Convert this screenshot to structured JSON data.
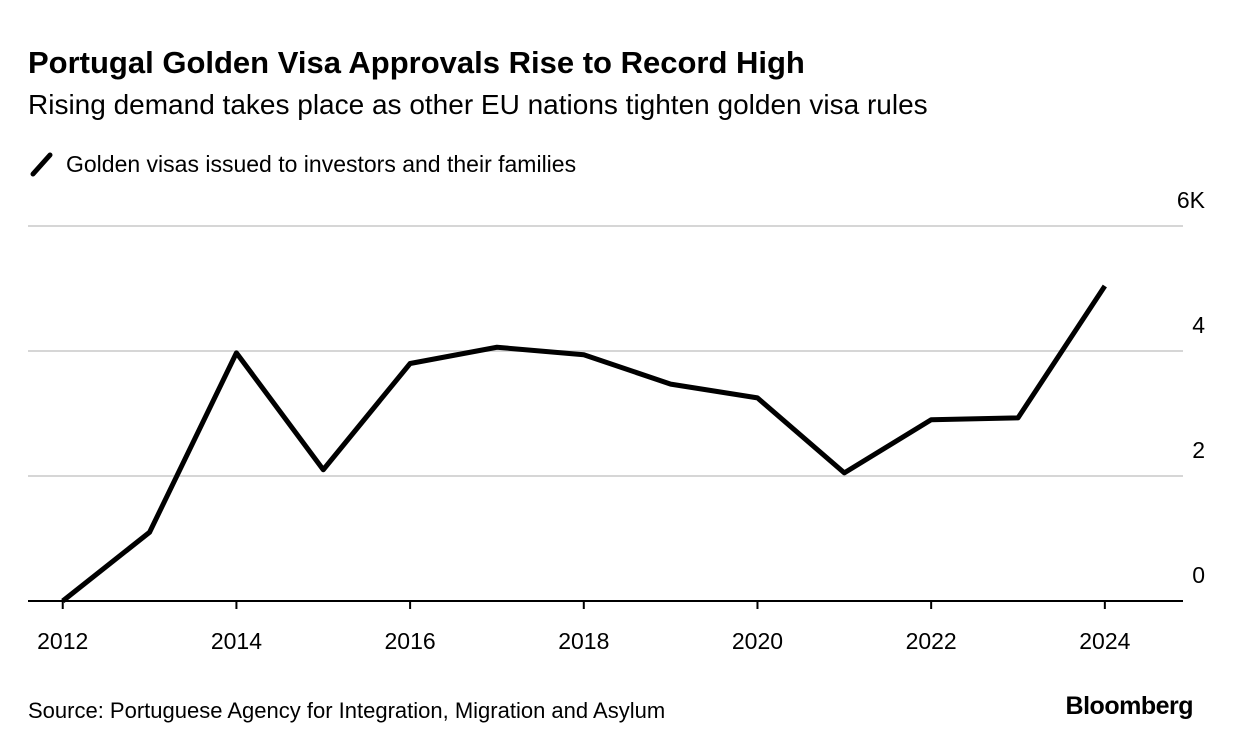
{
  "chart_data": {
    "type": "line",
    "title": "Portugal Golden Visa Approvals Rise to Record High",
    "subtitle": "Rising demand takes place as other EU nations tighten golden visa rules",
    "source": "Source: Portuguese Agency for Integration, Migration and Asylum",
    "brand": "Bloomberg",
    "x": [
      2012,
      2013,
      2014,
      2015,
      2016,
      2017,
      2018,
      2019,
      2020,
      2021,
      2022,
      2023,
      2024
    ],
    "series": [
      {
        "name": "Golden visas issued to investors and their families",
        "color": "#000000",
        "values": [
          0,
          1.1,
          3.97,
          2.1,
          3.8,
          4.06,
          3.94,
          3.47,
          3.25,
          2.05,
          2.9,
          2.93,
          5.04
        ]
      }
    ],
    "xlim": [
      2011.6,
      2024.9
    ],
    "xticks": [
      2012,
      2014,
      2016,
      2018,
      2020,
      2022,
      2024
    ],
    "ylim": [
      0,
      6
    ],
    "yticks": [
      0,
      2,
      4,
      {
        "value": 6,
        "label": "6K"
      }
    ],
    "grid": true
  }
}
